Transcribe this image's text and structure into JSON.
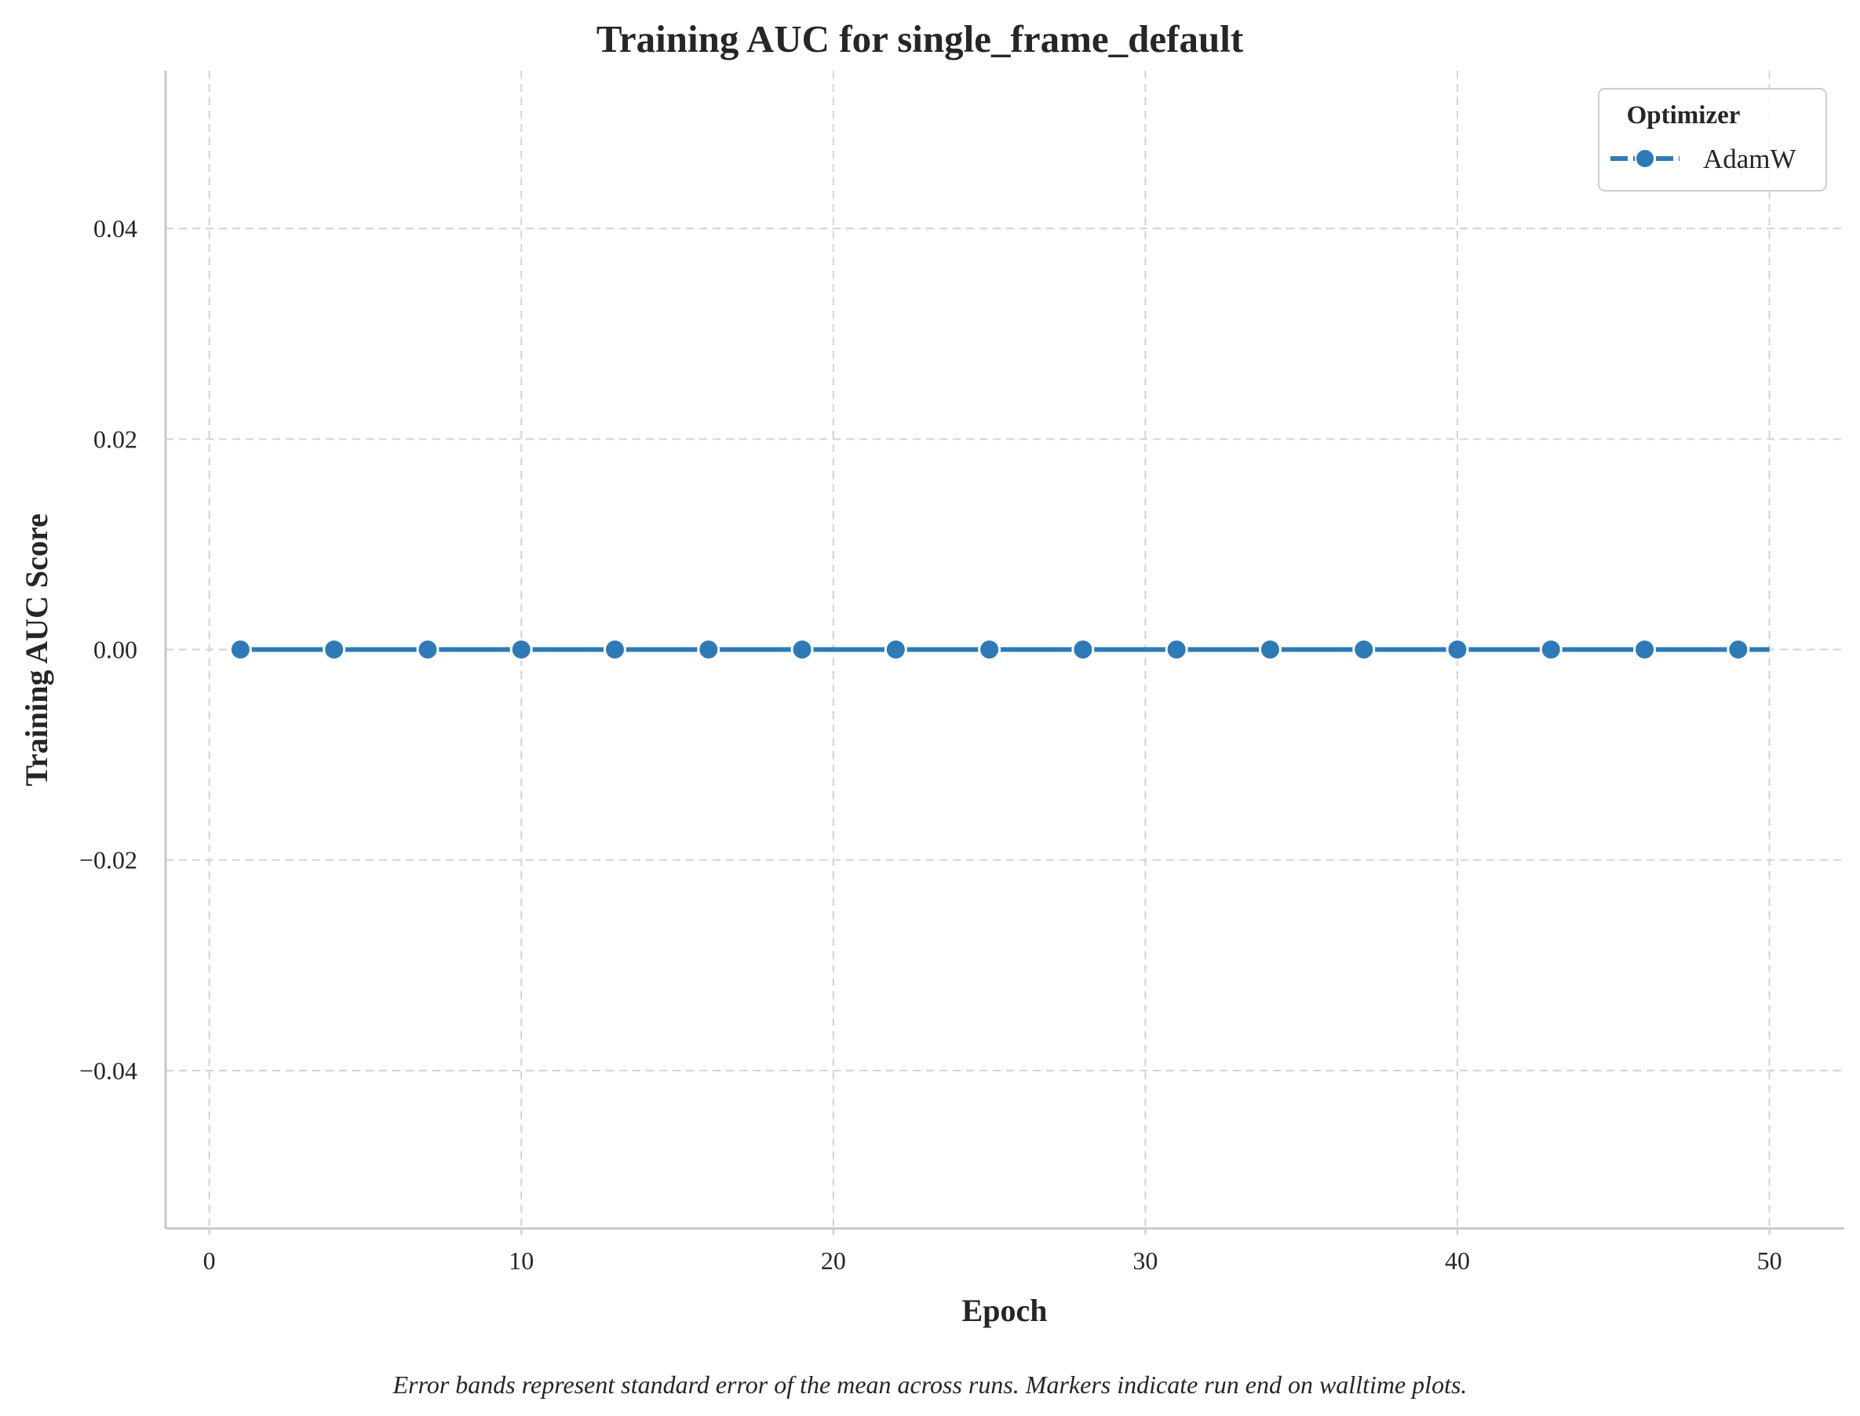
{
  "chart_data": {
    "type": "line",
    "title": "Training AUC for single_frame_default",
    "xlabel": "Epoch",
    "ylabel": "Training AUC Score",
    "xlim": [
      -1.4,
      52.4
    ],
    "ylim": [
      -0.055,
      0.055
    ],
    "x_ticks": [
      0,
      10,
      20,
      30,
      40,
      50
    ],
    "x_tick_labels": [
      "0",
      "10",
      "20",
      "30",
      "40",
      "50"
    ],
    "y_ticks": [
      0.04,
      0.02,
      0.0,
      -0.02,
      -0.04
    ],
    "y_tick_labels": [
      "0.04",
      "0.02",
      "0.00",
      "−0.02",
      "−0.04"
    ],
    "grid": true,
    "legend": {
      "title": "Optimizer",
      "position": "top-right",
      "entries": [
        "AdamW"
      ]
    },
    "series": [
      {
        "name": "AdamW",
        "color": "#2e7ab6",
        "x": [
          1,
          2,
          3,
          4,
          5,
          6,
          7,
          8,
          9,
          10,
          11,
          12,
          13,
          14,
          15,
          16,
          17,
          18,
          19,
          20,
          21,
          22,
          23,
          24,
          25,
          26,
          27,
          28,
          29,
          30,
          31,
          32,
          33,
          34,
          35,
          36,
          37,
          38,
          39,
          40,
          41,
          42,
          43,
          44,
          45,
          46,
          47,
          48,
          49,
          50
        ],
        "values": [
          0,
          0,
          0,
          0,
          0,
          0,
          0,
          0,
          0,
          0,
          0,
          0,
          0,
          0,
          0,
          0,
          0,
          0,
          0,
          0,
          0,
          0,
          0,
          0,
          0,
          0,
          0,
          0,
          0,
          0,
          0,
          0,
          0,
          0,
          0,
          0,
          0,
          0,
          0,
          0,
          0,
          0,
          0,
          0,
          0,
          0,
          0,
          0,
          0,
          0
        ],
        "marker_x": [
          1,
          4,
          7,
          10,
          13,
          16,
          19,
          22,
          25,
          28,
          31,
          34,
          37,
          40,
          43,
          46,
          49
        ]
      }
    ],
    "caption": "Error bands represent standard error of the mean across runs. Markers indicate run end on walltime plots."
  }
}
